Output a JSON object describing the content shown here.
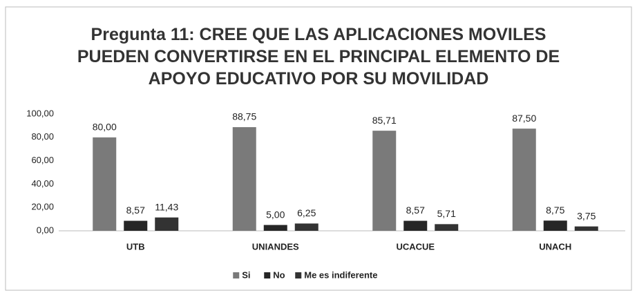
{
  "chart_data": {
    "type": "bar",
    "title": "Pregunta 11: CREE QUE LAS APLICACIONES MOVILES PUEDEN CONVERTIRSE EN EL PRINCIPAL ELEMENTO DE APOYO EDUCATIVO POR SU MOVILIDAD",
    "categories": [
      "UTB",
      "UNIANDES",
      "UCACUE",
      "UNACH"
    ],
    "series": [
      {
        "name": "Si",
        "color": "#7a7a7a",
        "values": [
          80,
          88.75,
          85.71,
          87.5
        ],
        "value_labels": [
          "80,00",
          "88,75",
          "85,71",
          "87,50"
        ]
      },
      {
        "name": "No",
        "color": "#262626",
        "values": [
          8.57,
          5,
          8.57,
          8.75
        ],
        "value_labels": [
          "8,57",
          "5,00",
          "8,57",
          "8,75"
        ]
      },
      {
        "name": "Me es indiferente",
        "color": "#333333",
        "values": [
          11.43,
          6.25,
          5.71,
          3.75
        ],
        "value_labels": [
          "11,43",
          "6,25",
          "5,71",
          "3,75"
        ]
      }
    ],
    "ylim": [
      0,
      100
    ],
    "yticks": [
      {
        "value": 0,
        "label": "0,00"
      },
      {
        "value": 20,
        "label": "20,00"
      },
      {
        "value": 40,
        "label": "40,00"
      },
      {
        "value": 60,
        "label": "60,00"
      },
      {
        "value": 80,
        "label": "80,00"
      },
      {
        "value": 100,
        "label": "100,00"
      }
    ],
    "grid": false,
    "legend": "bottom"
  }
}
